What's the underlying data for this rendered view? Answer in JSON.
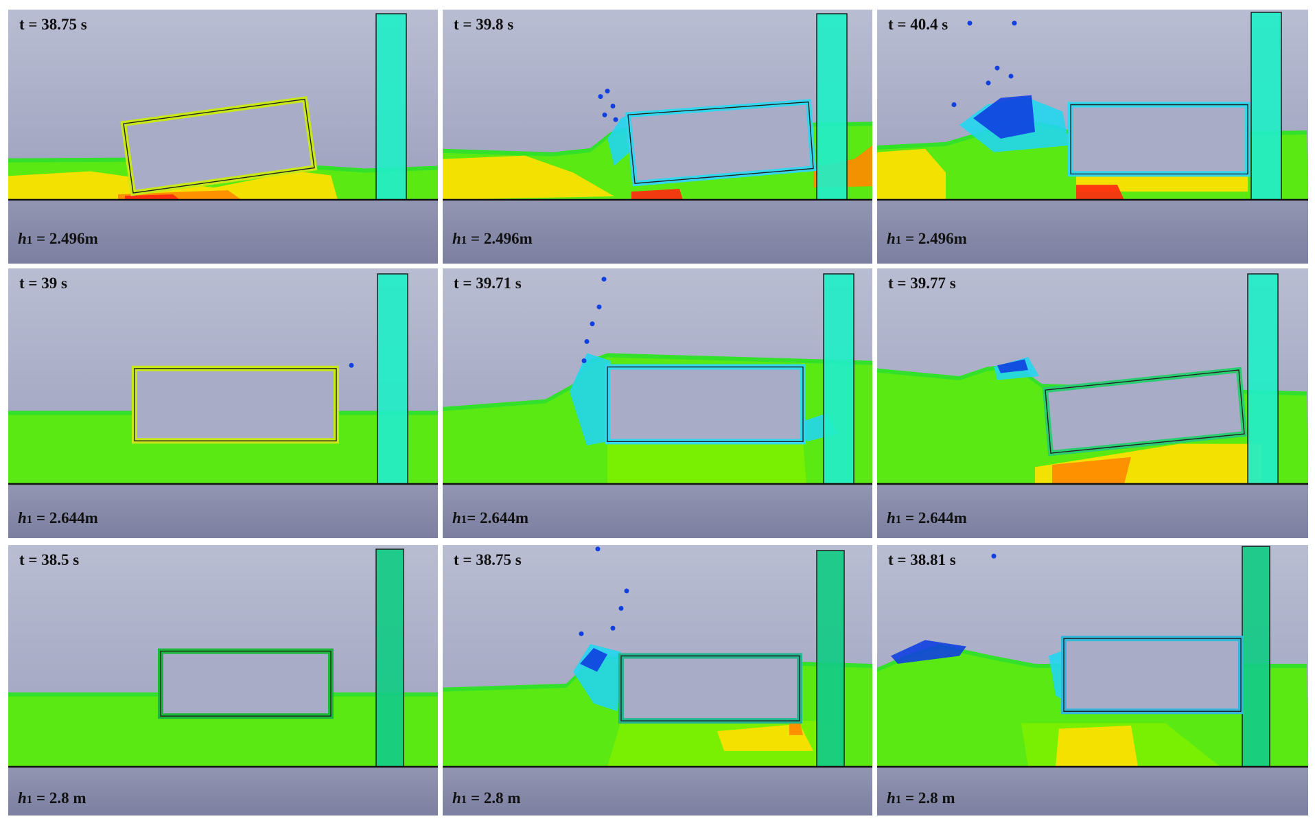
{
  "figure": {
    "rows": [
      {
        "panels": [
          {
            "time_label": "t = 38.75 s",
            "depth_label": "2.496m",
            "depth_sep": " = "
          },
          {
            "time_label": "t = 39.8 s",
            "depth_label": "2.496m",
            "depth_sep": " = "
          },
          {
            "time_label": "t = 40.4 s",
            "depth_label": "2.496m",
            "depth_sep": " = "
          }
        ]
      },
      {
        "panels": [
          {
            "time_label": "t = 39 s",
            "depth_label": "2.644m",
            "depth_sep": " = "
          },
          {
            "time_label": "t = 39.71 s",
            "depth_label": "2.644m",
            "depth_sep": "= "
          },
          {
            "time_label": "t = 39.77 s",
            "depth_label": "2.644m",
            "depth_sep": " = "
          }
        ]
      },
      {
        "panels": [
          {
            "time_label": "t = 38.5 s",
            "depth_label": "2.8 m",
            "depth_sep": " = "
          },
          {
            "time_label": "t = 38.75 s",
            "depth_label": "2.8 m",
            "depth_sep": " = "
          },
          {
            "time_label": "t = 38.81 s",
            "depth_label": "2.8 m",
            "depth_sep": " = "
          }
        ]
      }
    ],
    "depth_symbol": "h",
    "depth_subscript": "1"
  },
  "colors": {
    "sky_top": "#b9bdd2",
    "sky_bottom": "#9da0bd",
    "ground_top": "#9296b2",
    "ground_bottom": "#7c7fa0",
    "water_green": "#33e02a",
    "water_lime": "#7cf000",
    "water_yellow": "#ffe000",
    "water_orange": "#ff8a00",
    "water_red": "#ff2a10",
    "water_cyan": "#22d6f0",
    "water_blue": "#1040e0",
    "wall": "#22eec8",
    "wall_dark": "#14cc86"
  }
}
